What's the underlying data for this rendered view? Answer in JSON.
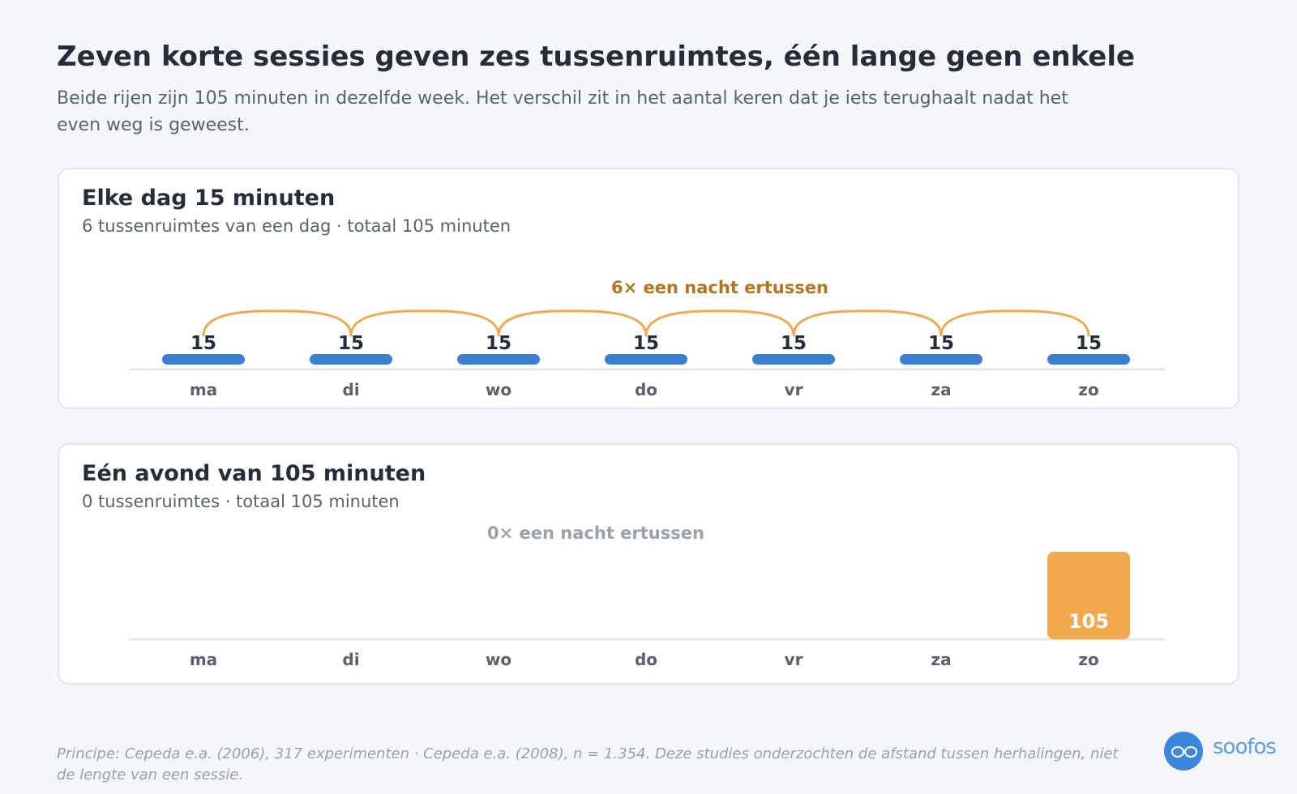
{
  "header": {
    "title": "Zeven korte sessies geven zes tussenruimtes, één lange geen enkele",
    "subtitle": "Beide rijen zijn 105 minuten in dezelfde week. Het verschil zit in het aantal keren dat je iets terughaalt nadat het even weg is geweest."
  },
  "chart_data": [
    {
      "type": "bar",
      "title": "Elke dag 15 minuten",
      "subtitle": "6 tussenruimtes van een dag · totaal 105 minuten",
      "categories": [
        "ma",
        "di",
        "wo",
        "do",
        "vr",
        "za",
        "zo"
      ],
      "values": [
        15,
        15,
        15,
        15,
        15,
        15,
        15
      ],
      "annotation": "6× een nacht ertussen",
      "gaps": 6,
      "colors": {
        "bar": "#3a7fd5",
        "arc": "#f0a94e",
        "annotation": "#b8731c"
      }
    },
    {
      "type": "bar",
      "title": "Eén avond van 105 minuten",
      "subtitle": "0 tussenruimtes · totaal 105 minuten",
      "categories": [
        "ma",
        "di",
        "wo",
        "do",
        "vr",
        "za",
        "zo"
      ],
      "values": [
        0,
        0,
        0,
        0,
        0,
        0,
        105
      ],
      "annotation": "0× een nacht ertussen",
      "gaps": 0,
      "colors": {
        "bar": "#f2a84c",
        "annotation": "#9aa1ae"
      }
    }
  ],
  "footnote": "Principe: Cepeda e.a. (2006), 317 experimenten · Cepeda e.a. (2008), n = 1.354. Deze studies onderzochten de afstand tussen herhalingen, niet de lengte van een sessie.",
  "brand": {
    "name": "soofos",
    "logo_icon": "glasses-icon",
    "color": "#3d86dc"
  }
}
